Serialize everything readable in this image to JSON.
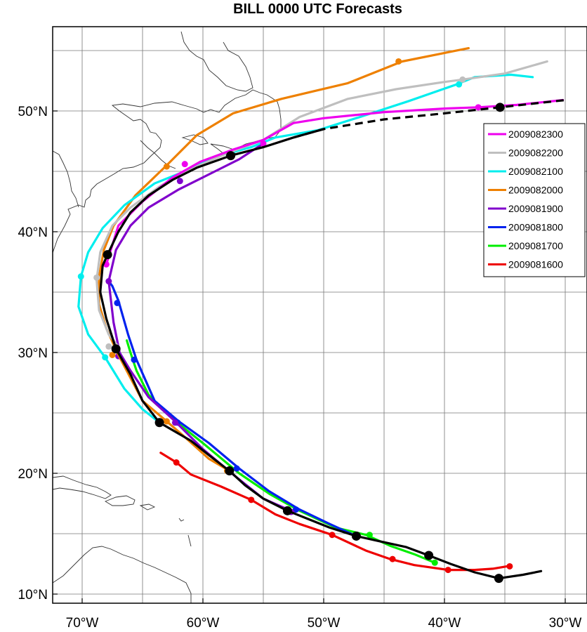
{
  "title": "BILL 0000 UTC Forecasts",
  "chart_data": {
    "type": "line",
    "map_extent": {
      "lon": [
        -72,
        -30
      ],
      "lat": [
        9.5,
        56
      ]
    },
    "x_ticks": [
      {
        "value": -70,
        "label": "70°W"
      },
      {
        "value": -60,
        "label": "60°W"
      },
      {
        "value": -50,
        "label": "50°W"
      },
      {
        "value": -40,
        "label": "40°W"
      },
      {
        "value": -30,
        "label": "30°W"
      }
    ],
    "y_ticks": [
      {
        "value": 10,
        "label": "10°N"
      },
      {
        "value": 20,
        "label": "20°N"
      },
      {
        "value": 30,
        "label": "30°N"
      },
      {
        "value": 40,
        "label": "40°N"
      },
      {
        "value": 50,
        "label": "50°N"
      }
    ],
    "grid": true,
    "legend_position": "right",
    "best_track": {
      "color": "#000000",
      "points": [
        [
          -32,
          11.9
        ],
        [
          -33.5,
          11.6
        ],
        [
          -35.5,
          11.3
        ],
        [
          -37.5,
          11.8
        ],
        [
          -39.5,
          12.5
        ],
        [
          -41.3,
          13.2
        ],
        [
          -43.2,
          13.9
        ],
        [
          -45.5,
          14.4
        ],
        [
          -47.3,
          14.8
        ],
        [
          -49.5,
          15.5
        ],
        [
          -51.5,
          16.3
        ],
        [
          -53,
          16.9
        ],
        [
          -55,
          17.9
        ],
        [
          -56.5,
          19.0
        ],
        [
          -57.8,
          20.2
        ],
        [
          -59.5,
          21.5
        ],
        [
          -61,
          22.7
        ],
        [
          -63.6,
          24.2
        ],
        [
          -65,
          26.0
        ],
        [
          -66,
          28.2
        ],
        [
          -67.2,
          30.3
        ],
        [
          -68,
          32.8
        ],
        [
          -68.5,
          35.0
        ],
        [
          -68.3,
          37.2
        ],
        [
          -67.9,
          38.1
        ],
        [
          -67,
          40.0
        ],
        [
          -66,
          41.6
        ],
        [
          -64.5,
          43.0
        ],
        [
          -62.5,
          44.3
        ],
        [
          -60.5,
          45.3
        ],
        [
          -57.7,
          46.3
        ],
        [
          -55,
          47.0
        ],
        [
          -52.5,
          47.8
        ],
        [
          -50,
          48.5
        ]
      ],
      "markers": [
        [
          -35.5,
          11.3
        ],
        [
          -41.3,
          13.2
        ],
        [
          -47.3,
          14.8
        ],
        [
          -53,
          16.9
        ],
        [
          -57.8,
          20.2
        ],
        [
          -63.6,
          24.2
        ],
        [
          -67.2,
          30.3
        ],
        [
          -67.9,
          38.1
        ],
        [
          -57.7,
          46.3
        ],
        [
          -35.4,
          50.3
        ]
      ]
    },
    "extrapolation": {
      "color": "#000000",
      "points": [
        [
          -52.5,
          47.8
        ],
        [
          -50,
          48.5
        ],
        [
          -45,
          49.3
        ],
        [
          -40,
          49.8
        ],
        [
          -35.4,
          50.3
        ],
        [
          -30,
          50.9
        ]
      ]
    },
    "series": [
      {
        "name": "2009082300",
        "color": "#ee00ee",
        "points": [
          [
            -68,
            37.3
          ],
          [
            -67,
            40.5
          ],
          [
            -65,
            42.5
          ],
          [
            -62.5,
            44.5
          ],
          [
            -60.2,
            45.8
          ],
          [
            -57.5,
            46.8
          ],
          [
            -55,
            47.6
          ],
          [
            -52.5,
            49.0
          ],
          [
            -50,
            49.4
          ],
          [
            -45,
            49.9
          ],
          [
            -40,
            50.2
          ],
          [
            -37.2,
            50.3
          ],
          [
            -34,
            50.5
          ],
          [
            -30.2,
            50.9
          ]
        ],
        "markers": [
          [
            -68,
            37.3
          ],
          [
            -61.5,
            45.6
          ],
          [
            -55,
            47.3
          ],
          [
            -37.2,
            50.3
          ]
        ]
      },
      {
        "name": "2009082200",
        "color": "#bfbfbf",
        "points": [
          [
            -67,
            30.5
          ],
          [
            -67.8,
            31.5
          ],
          [
            -68.6,
            33.5
          ],
          [
            -68.8,
            36.0
          ],
          [
            -68.5,
            38.3
          ],
          [
            -67.5,
            40.5
          ],
          [
            -66,
            42.0
          ],
          [
            -63.5,
            43.8
          ],
          [
            -60.5,
            45.4
          ],
          [
            -58,
            46.5
          ],
          [
            -55,
            47.6
          ],
          [
            -52,
            49.5
          ],
          [
            -48,
            51.0
          ],
          [
            -44,
            51.8
          ],
          [
            -40,
            52.4
          ],
          [
            -38.5,
            52.6
          ],
          [
            -35,
            53.1
          ],
          [
            -31.5,
            54.1
          ]
        ],
        "markers": [
          [
            -67.8,
            30.5
          ],
          [
            -68.8,
            36.2
          ],
          [
            -38.5,
            52.6
          ]
        ]
      },
      {
        "name": "2009082100",
        "color": "#00eeee",
        "points": [
          [
            -63.6,
            24.2
          ],
          [
            -65,
            25.3
          ],
          [
            -66.5,
            27.0
          ],
          [
            -68.1,
            29.6
          ],
          [
            -69.5,
            31.5
          ],
          [
            -70.3,
            33.8
          ],
          [
            -70.1,
            36.3
          ],
          [
            -69.5,
            38.3
          ],
          [
            -68.3,
            40.3
          ],
          [
            -66.5,
            42.2
          ],
          [
            -64,
            44.0
          ],
          [
            -61.5,
            45.0
          ],
          [
            -59,
            46.2
          ],
          [
            -56,
            47.0
          ],
          [
            -54,
            47.8
          ],
          [
            -50.5,
            48.4
          ],
          [
            -47,
            49.5
          ],
          [
            -43,
            50.8
          ],
          [
            -39,
            52.2
          ],
          [
            -37.5,
            52.8
          ],
          [
            -34.5,
            53.0
          ],
          [
            -32.7,
            52.8
          ]
        ],
        "markers": [
          [
            -68.1,
            29.6
          ],
          [
            -70.1,
            36.3
          ],
          [
            -38.8,
            52.2
          ]
        ]
      },
      {
        "name": "2009082000",
        "color": "#ee8000",
        "points": [
          [
            -57.8,
            20.2
          ],
          [
            -59.5,
            21.2
          ],
          [
            -61.5,
            23.0
          ],
          [
            -63,
            24.3
          ],
          [
            -65,
            26.0
          ],
          [
            -67,
            29.8
          ],
          [
            -68,
            32.0
          ],
          [
            -68.6,
            34.0
          ],
          [
            -68.6,
            36.3
          ],
          [
            -68.2,
            38.5
          ],
          [
            -67.4,
            40.5
          ],
          [
            -65.6,
            43.0
          ],
          [
            -63,
            45.5
          ],
          [
            -60.5,
            48.0
          ],
          [
            -57.5,
            49.8
          ],
          [
            -53.5,
            51.0
          ],
          [
            -48,
            52.3
          ],
          [
            -43.5,
            54.1
          ],
          [
            -40,
            54.8
          ],
          [
            -38,
            55.2
          ]
        ],
        "markers": [
          [
            -58,
            20.2
          ],
          [
            -63,
            24.3
          ],
          [
            -67.5,
            29.8
          ],
          [
            -63,
            45.4
          ],
          [
            -43.8,
            54.1
          ]
        ]
      },
      {
        "name": "2009081900",
        "color": "#8000cc",
        "points": [
          [
            -52.5,
            16.8
          ],
          [
            -55,
            17.9
          ],
          [
            -57.5,
            19.9
          ],
          [
            -60,
            22.0
          ],
          [
            -62.3,
            24.3
          ],
          [
            -64.5,
            26.3
          ],
          [
            -66,
            28.5
          ],
          [
            -66.9,
            30.0
          ],
          [
            -67.4,
            32.5
          ],
          [
            -67.8,
            35.9
          ],
          [
            -67.2,
            38.5
          ],
          [
            -66,
            40.5
          ],
          [
            -64.5,
            42.0
          ],
          [
            -62,
            43.5
          ],
          [
            -59,
            45.0
          ],
          [
            -57,
            46.0
          ],
          [
            -55,
            47.3
          ]
        ],
        "markers": [
          [
            -52.7,
            16.8
          ],
          [
            -57.7,
            20.2
          ],
          [
            -62.3,
            24.2
          ],
          [
            -67,
            29.7
          ],
          [
            -67.8,
            35.9
          ],
          [
            -61.9,
            44.2
          ]
        ]
      },
      {
        "name": "2009081800",
        "color": "#0022ee",
        "points": [
          [
            -47.3,
            14.8
          ],
          [
            -49.5,
            15.8
          ],
          [
            -52,
            17.0
          ],
          [
            -54.5,
            18.5
          ],
          [
            -57,
            20.4
          ],
          [
            -59.5,
            22.5
          ],
          [
            -62,
            24.3
          ],
          [
            -64,
            26.0
          ],
          [
            -65.5,
            29.4
          ],
          [
            -66.2,
            31.5
          ],
          [
            -67,
            34.3
          ],
          [
            -67.5,
            35.5
          ],
          [
            -67.8,
            35.9
          ]
        ],
        "markers": [
          [
            -47.3,
            14.8
          ],
          [
            -52.3,
            17.0
          ],
          [
            -57.2,
            20.4
          ],
          [
            -62.1,
            24.2
          ],
          [
            -65.7,
            29.4
          ],
          [
            -67.1,
            34.1
          ]
        ]
      },
      {
        "name": "2009081700",
        "color": "#00ee00",
        "points": [
          [
            -40.8,
            12.6
          ],
          [
            -42.5,
            13.3
          ],
          [
            -44.5,
            14.0
          ],
          [
            -46.5,
            14.9
          ],
          [
            -49,
            15.5
          ],
          [
            -52,
            16.9
          ],
          [
            -54.5,
            18.3
          ],
          [
            -57,
            20.0
          ],
          [
            -60,
            22.5
          ],
          [
            -62.5,
            24.5
          ],
          [
            -64.5,
            26.5
          ],
          [
            -65.5,
            28.5
          ],
          [
            -66,
            30.0
          ],
          [
            -66.3,
            31.0
          ]
        ],
        "markers": [
          [
            -40.8,
            12.6
          ],
          [
            -46.2,
            14.9
          ]
        ]
      },
      {
        "name": "2009081600",
        "color": "#ee0000",
        "points": [
          [
            -34.8,
            12.3
          ],
          [
            -36,
            12.1
          ],
          [
            -37.5,
            12.0
          ],
          [
            -39.7,
            12.0
          ],
          [
            -42.5,
            12.4
          ],
          [
            -44.5,
            12.9
          ],
          [
            -46.5,
            13.6
          ],
          [
            -49.3,
            14.9
          ],
          [
            -52,
            15.8
          ],
          [
            -54,
            16.6
          ],
          [
            -56,
            17.8
          ],
          [
            -58.5,
            18.9
          ],
          [
            -61,
            19.9
          ],
          [
            -62.2,
            20.9
          ],
          [
            -63.5,
            21.7
          ]
        ],
        "markers": [
          [
            -34.6,
            12.3
          ],
          [
            -39.7,
            12.0
          ],
          [
            -44.3,
            12.9
          ],
          [
            -49.3,
            14.9
          ],
          [
            -56,
            17.8
          ],
          [
            -62.2,
            20.9
          ]
        ]
      }
    ]
  }
}
